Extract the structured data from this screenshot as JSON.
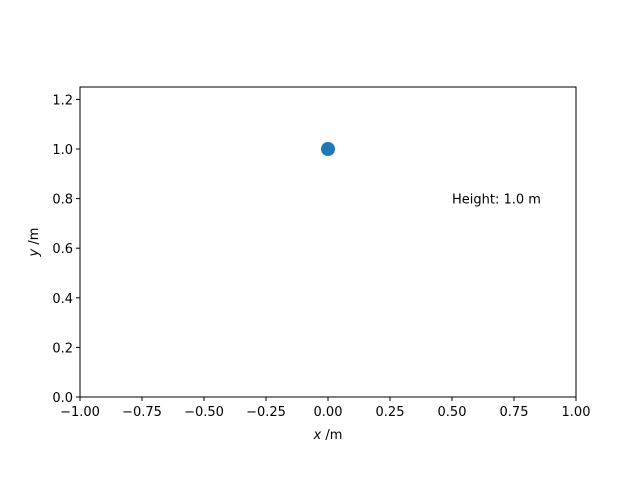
{
  "chart_data": {
    "type": "scatter",
    "title": "",
    "xlabel_var": "x",
    "xlabel_unit": " /m",
    "ylabel_var": "y",
    "ylabel_unit": " /m",
    "xlim": [
      -1.0,
      1.0
    ],
    "ylim": [
      0.0,
      1.25
    ],
    "xticks": [
      {
        "value": -1.0,
        "label": "−1.00"
      },
      {
        "value": -0.75,
        "label": "−0.75"
      },
      {
        "value": -0.5,
        "label": "−0.50"
      },
      {
        "value": -0.25,
        "label": "−0.25"
      },
      {
        "value": 0.0,
        "label": "0.00"
      },
      {
        "value": 0.25,
        "label": "0.25"
      },
      {
        "value": 0.5,
        "label": "0.50"
      },
      {
        "value": 0.75,
        "label": "0.75"
      },
      {
        "value": 1.0,
        "label": "1.00"
      }
    ],
    "yticks": [
      {
        "value": 0.0,
        "label": "0.0"
      },
      {
        "value": 0.2,
        "label": "0.2"
      },
      {
        "value": 0.4,
        "label": "0.4"
      },
      {
        "value": 0.6,
        "label": "0.6"
      },
      {
        "value": 0.8,
        "label": "0.8"
      },
      {
        "value": 1.0,
        "label": "1.0"
      },
      {
        "value": 1.2,
        "label": "1.2"
      }
    ],
    "series": [
      {
        "points": [
          {
            "x": 0.0,
            "y": 1.0
          }
        ],
        "color": "#1f77b4"
      }
    ],
    "annotations": [
      {
        "text": "Height: 1.0 m",
        "x": 0.5,
        "y": 0.8
      }
    ],
    "grid": false,
    "legend": "none"
  }
}
